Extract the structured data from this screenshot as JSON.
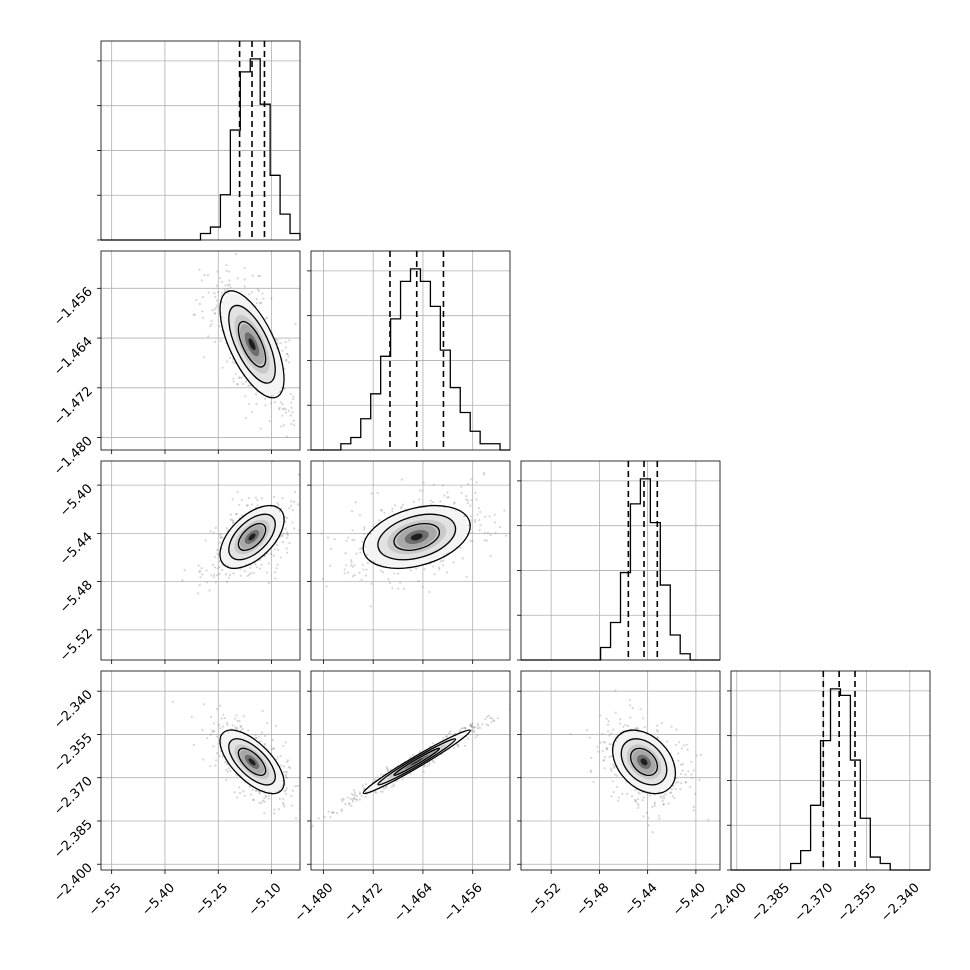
{
  "chart_data": {
    "type": "corner",
    "grid": true,
    "parameters": [
      {
        "ticks": [
          -5.55,
          -5.4,
          -5.25,
          -5.1
        ],
        "tick_labels": [
          "−5.55",
          "−5.40",
          "−5.25",
          "−5.10"
        ],
        "range": [
          -5.58,
          -5.02
        ],
        "mean": -5.155,
        "quantiles": [
          -5.19,
          -5.155,
          -5.12
        ],
        "sd": 0.045
      },
      {
        "ticks": [
          -1.48,
          -1.472,
          -1.464,
          -1.456
        ],
        "tick_labels": [
          "−1.480",
          "−1.472",
          "−1.464",
          "−1.456"
        ],
        "range": [
          -1.482,
          -1.45
        ],
        "mean": -1.465,
        "quantiles": [
          -1.4693,
          -1.465,
          -1.4607
        ],
        "sd": 0.0043
      },
      {
        "ticks": [
          -5.52,
          -5.48,
          -5.44,
          -5.4
        ],
        "tick_labels": [
          "−5.52",
          "−5.48",
          "−5.44",
          "−5.40"
        ],
        "range": [
          -5.545,
          -5.38
        ],
        "mean": -5.443,
        "quantiles": [
          -5.456,
          -5.443,
          -5.432
        ],
        "sd": 0.013
      },
      {
        "ticks": [
          -2.4,
          -2.385,
          -2.37,
          -2.355,
          -2.34
        ],
        "tick_labels": [
          "−2.400",
          "−2.385",
          "−2.370",
          "−2.355",
          "−2.340"
        ],
        "range": [
          -2.402,
          -2.333
        ],
        "mean": -2.3645,
        "quantiles": [
          -2.37,
          -2.3645,
          -2.359
        ],
        "sd": 0.0055
      }
    ],
    "pairs": [
      {
        "row": 1,
        "col": 0,
        "rho": -0.65
      },
      {
        "row": 2,
        "col": 0,
        "rho": 0.55
      },
      {
        "row": 2,
        "col": 1,
        "rho": 0.35
      },
      {
        "row": 3,
        "col": 0,
        "rho": -0.65
      },
      {
        "row": 3,
        "col": 1,
        "rho": 0.98
      },
      {
        "row": 3,
        "col": 2,
        "rho": -0.35
      }
    ],
    "colors": {
      "line": "#000000",
      "points": "#8a8a8a",
      "grid": "#b0b0b0"
    }
  }
}
